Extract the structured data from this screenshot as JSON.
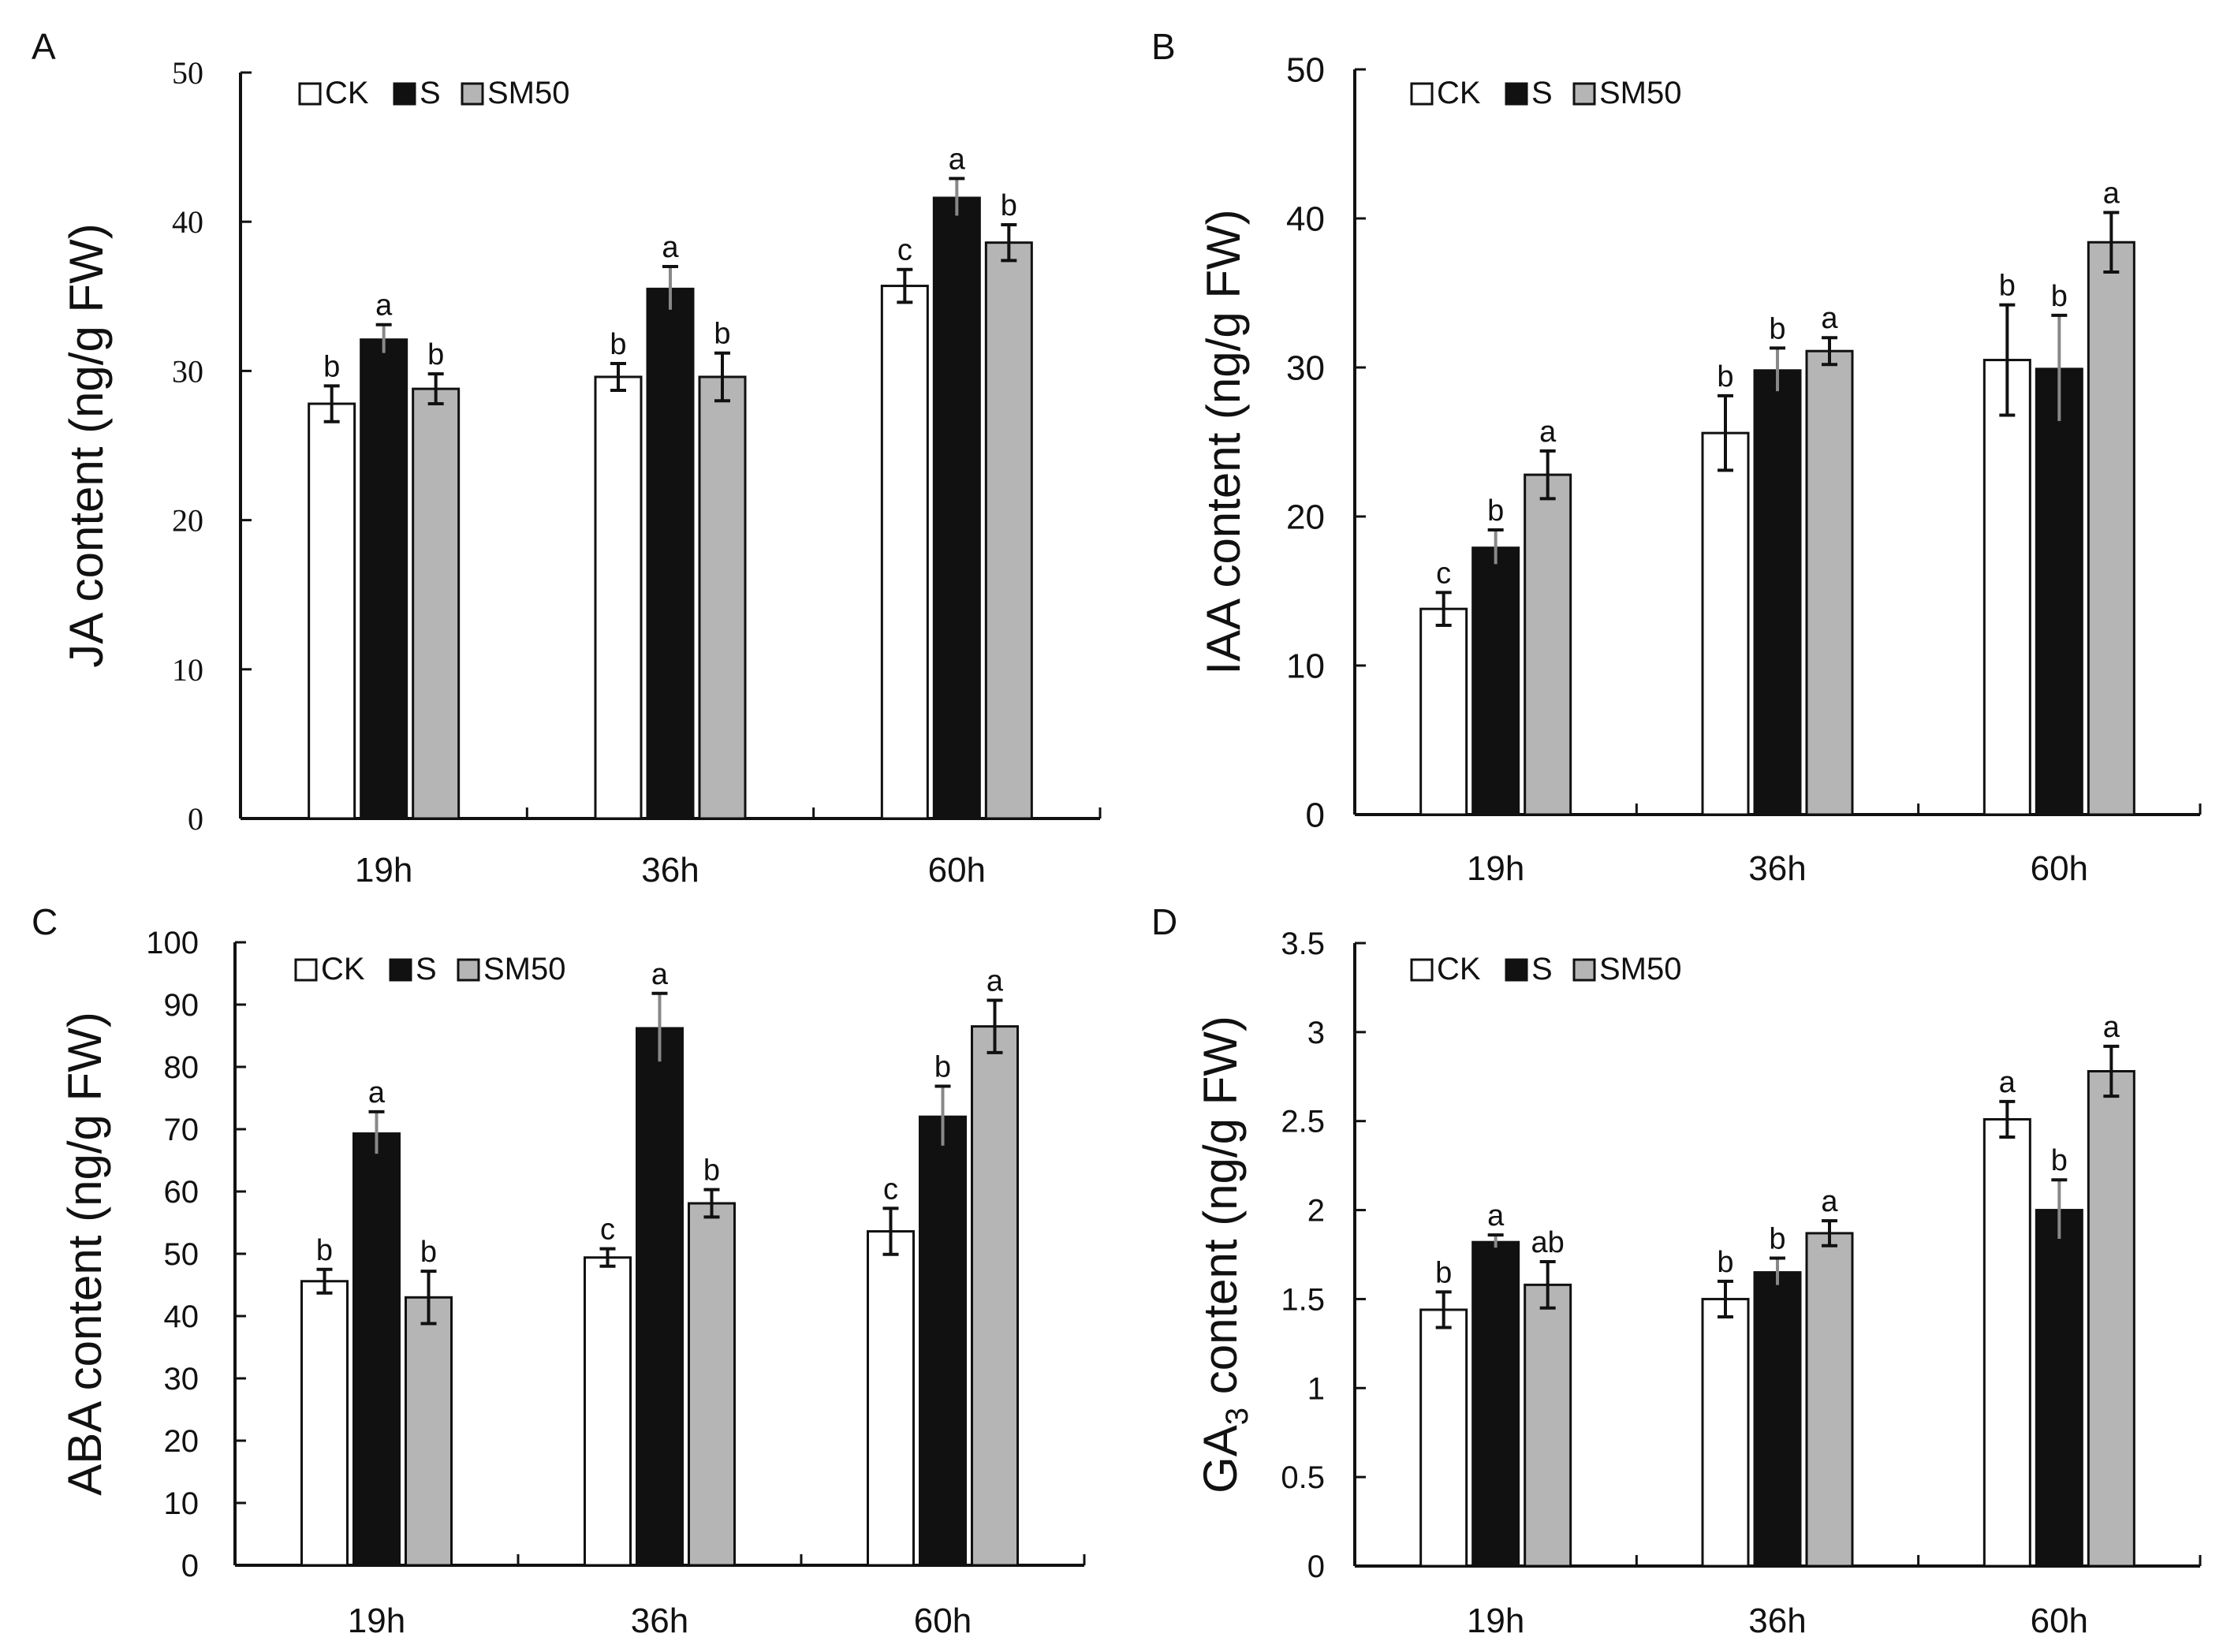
{
  "chart_data": [
    {
      "panel_label": "A",
      "type": "bar",
      "title": "",
      "xlabel": "",
      "ylabel": "JA content (ng/g FW)",
      "ylim": [
        0,
        50
      ],
      "yticks": [
        0,
        10,
        20,
        30,
        40,
        50
      ],
      "ytick_labels": [
        "0",
        "10",
        "20",
        "30",
        "40",
        "50"
      ],
      "tick_font": "serif",
      "categories": [
        "19h",
        "36h",
        "60h"
      ],
      "legend": {
        "placement": "top-left",
        "entries": [
          "CK",
          "S",
          "SM50"
        ]
      },
      "series": [
        {
          "name": "CK",
          "color": "#ffffff",
          "values": [
            27.8,
            29.6,
            35.7
          ],
          "errors": [
            1.2,
            0.9,
            1.1
          ],
          "letters": [
            "b",
            "b",
            "c"
          ]
        },
        {
          "name": "S",
          "color": "#111111",
          "values": [
            32.1,
            35.5,
            41.6
          ],
          "errors": [
            1.0,
            1.5,
            1.3
          ],
          "letters": [
            "a",
            "a",
            "a"
          ]
        },
        {
          "name": "SM50",
          "color": "#b5b5b5",
          "values": [
            28.8,
            29.6,
            38.6
          ],
          "errors": [
            1.0,
            1.6,
            1.2
          ],
          "letters": [
            "b",
            "b",
            "b"
          ]
        }
      ]
    },
    {
      "panel_label": "B",
      "type": "bar",
      "title": "",
      "xlabel": "",
      "ylabel": "IAA content (ng/g FW)",
      "ylim": [
        0,
        50
      ],
      "yticks": [
        0,
        10,
        20,
        30,
        40,
        50
      ],
      "ytick_labels": [
        "0",
        "10",
        "20",
        "30",
        "40",
        "50"
      ],
      "tick_font": "sans",
      "categories": [
        "19h",
        "36h",
        "60h"
      ],
      "legend": {
        "placement": "top-left",
        "entries": [
          "CK",
          "S",
          "SM50"
        ]
      },
      "series": [
        {
          "name": "CK",
          "color": "#ffffff",
          "values": [
            13.8,
            25.6,
            30.5
          ],
          "errors": [
            1.1,
            2.5,
            3.7
          ],
          "letters": [
            "c",
            "b",
            "b"
          ]
        },
        {
          "name": "S",
          "color": "#111111",
          "values": [
            17.9,
            29.8,
            29.9
          ],
          "errors": [
            1.2,
            1.5,
            3.6
          ],
          "letters": [
            "b",
            "b",
            "b"
          ]
        },
        {
          "name": "SM50",
          "color": "#b5b5b5",
          "values": [
            22.8,
            31.1,
            38.4
          ],
          "errors": [
            1.6,
            0.9,
            2.0
          ],
          "letters": [
            "a",
            "a",
            "a"
          ]
        }
      ]
    },
    {
      "panel_label": "C",
      "type": "bar",
      "title": "",
      "xlabel": "",
      "ylabel": "ABA content (ng/g FW)",
      "ylim": [
        0,
        100
      ],
      "yticks": [
        0,
        10,
        20,
        30,
        40,
        50,
        60,
        70,
        80,
        90,
        100
      ],
      "ytick_labels": [
        "0",
        "10",
        "20",
        "30",
        "40",
        "50",
        "60",
        "70",
        "80",
        "90",
        "100"
      ],
      "tick_font": "sans",
      "categories": [
        "19h",
        "36h",
        "60h"
      ],
      "legend": {
        "placement": "top-left",
        "entries": [
          "CK",
          "S",
          "SM50"
        ]
      },
      "series": [
        {
          "name": "CK",
          "color": "#ffffff",
          "values": [
            45.6,
            49.4,
            53.6
          ],
          "errors": [
            1.9,
            1.4,
            3.7
          ],
          "letters": [
            "b",
            "c",
            "c"
          ]
        },
        {
          "name": "S",
          "color": "#111111",
          "values": [
            69.3,
            86.2,
            72.0
          ],
          "errors": [
            3.5,
            5.6,
            4.9
          ],
          "letters": [
            "a",
            "a",
            "b"
          ]
        },
        {
          "name": "SM50",
          "color": "#b5b5b5",
          "values": [
            43.0,
            58.1,
            86.5
          ],
          "errors": [
            4.2,
            2.2,
            4.2
          ],
          "letters": [
            "b",
            "b",
            "a"
          ]
        }
      ]
    },
    {
      "panel_label": "D",
      "type": "bar",
      "title": "",
      "xlabel": "",
      "ylabel": "GA",
      "ylabel_subscript": "3",
      "ylabel_suffix": " content (ng/g FW)",
      "ylim": [
        0,
        3.5
      ],
      "yticks": [
        0,
        0.5,
        1,
        1.5,
        2,
        2.5,
        3,
        3.5
      ],
      "ytick_labels": [
        "0",
        "0.5",
        "1",
        "1.5",
        "2",
        "2.5",
        "3",
        "3.5"
      ],
      "tick_font": "sans",
      "categories": [
        "19h",
        "36h",
        "60h"
      ],
      "legend": {
        "placement": "top-left",
        "entries": [
          "CK",
          "S",
          "SM50"
        ]
      },
      "series": [
        {
          "name": "CK",
          "color": "#ffffff",
          "values": [
            1.44,
            1.5,
            2.51
          ],
          "errors": [
            0.1,
            0.1,
            0.1
          ],
          "letters": [
            "b",
            "b",
            "a"
          ]
        },
        {
          "name": "S",
          "color": "#111111",
          "values": [
            1.82,
            1.65,
            2.0
          ],
          "errors": [
            0.04,
            0.08,
            0.17
          ],
          "letters": [
            "a",
            "b",
            "b"
          ]
        },
        {
          "name": "SM50",
          "color": "#b5b5b5",
          "values": [
            1.58,
            1.87,
            2.78
          ],
          "errors": [
            0.13,
            0.07,
            0.14
          ],
          "letters": [
            "ab",
            "a",
            "a"
          ]
        }
      ]
    }
  ]
}
